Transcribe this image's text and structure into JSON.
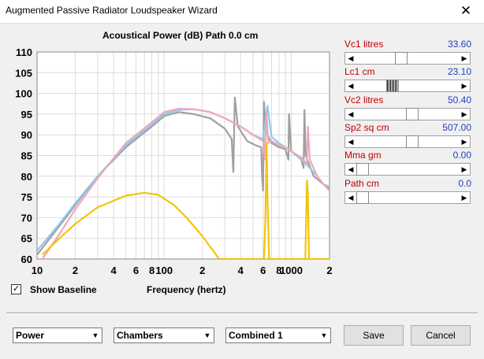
{
  "window": {
    "title": "Augmented Passive Radiator Loudspeaker Wizard",
    "close_glyph": "✕"
  },
  "plot": {
    "title": "Acoustical Power (dB)   Path 0.0 cm"
  },
  "chart_data": {
    "type": "line",
    "title": "Acoustical Power (dB)   Path 0.0 cm",
    "xlabel": "Frequency (hertz)",
    "ylabel": "",
    "xscale": "log",
    "xlim": [
      10,
      2000
    ],
    "ylim": [
      60,
      110
    ],
    "y_ticks": [
      60,
      65,
      70,
      75,
      80,
      85,
      90,
      95,
      100,
      105,
      110
    ],
    "x_tick_labels": [
      {
        "f": 10,
        "label": "10"
      },
      {
        "f": 20,
        "label": "2"
      },
      {
        "f": 40,
        "label": "4"
      },
      {
        "f": 60,
        "label": "6"
      },
      {
        "f": 80,
        "label": "8"
      },
      {
        "f": 100,
        "label": "100"
      },
      {
        "f": 200,
        "label": "2"
      },
      {
        "f": 400,
        "label": "4"
      },
      {
        "f": 600,
        "label": "6"
      },
      {
        "f": 800,
        "label": "8"
      },
      {
        "f": 1000,
        "label": "1000"
      },
      {
        "f": 2000,
        "label": "2"
      }
    ],
    "grid": true,
    "series": [
      {
        "color": "#a0a0a0",
        "points": [
          [
            10,
            61
          ],
          [
            15,
            68
          ],
          [
            20,
            73
          ],
          [
            30,
            80
          ],
          [
            50,
            87
          ],
          [
            80,
            92
          ],
          [
            100,
            94.5
          ],
          [
            130,
            95.5
          ],
          [
            170,
            95
          ],
          [
            230,
            94
          ],
          [
            300,
            91.5
          ],
          [
            340,
            89
          ],
          [
            350,
            81
          ],
          [
            360,
            99
          ],
          [
            380,
            92
          ],
          [
            450,
            88.5
          ],
          [
            520,
            87.5
          ],
          [
            580,
            87
          ],
          [
            590,
            80
          ],
          [
            600,
            76.5
          ],
          [
            610,
            98
          ],
          [
            630,
            91
          ],
          [
            700,
            88
          ],
          [
            800,
            87
          ],
          [
            900,
            86.5
          ],
          [
            950,
            84
          ],
          [
            960,
            95
          ],
          [
            1000,
            86
          ],
          [
            1100,
            85
          ],
          [
            1200,
            84
          ],
          [
            1250,
            82
          ],
          [
            1270,
            96
          ],
          [
            1300,
            85
          ],
          [
            1500,
            80
          ],
          [
            1800,
            78
          ],
          [
            2000,
            77
          ]
        ]
      },
      {
        "color": "#8ec8f0",
        "points": [
          [
            10,
            62
          ],
          [
            15,
            68.5
          ],
          [
            20,
            73.5
          ],
          [
            30,
            80
          ],
          [
            50,
            87.5
          ],
          [
            80,
            92.5
          ],
          [
            100,
            95
          ],
          [
            130,
            96
          ],
          [
            170,
            96.2
          ],
          [
            230,
            95.5
          ],
          [
            300,
            94
          ],
          [
            400,
            92
          ],
          [
            500,
            90
          ],
          [
            600,
            89
          ],
          [
            650,
            97
          ],
          [
            700,
            89.5
          ],
          [
            800,
            88
          ],
          [
            900,
            87
          ],
          [
            1000,
            86
          ],
          [
            1200,
            84
          ],
          [
            1400,
            82
          ],
          [
            1600,
            80
          ],
          [
            1800,
            78
          ],
          [
            2000,
            77.5
          ]
        ]
      },
      {
        "color": "#f0a8b8",
        "points": [
          [
            11,
            60
          ],
          [
            15,
            66
          ],
          [
            20,
            72
          ],
          [
            30,
            79.5
          ],
          [
            50,
            88
          ],
          [
            80,
            93
          ],
          [
            100,
            95.5
          ],
          [
            130,
            96.3
          ],
          [
            170,
            96.2
          ],
          [
            230,
            95.5
          ],
          [
            300,
            94
          ],
          [
            400,
            92
          ],
          [
            500,
            90
          ],
          [
            600,
            88.5
          ],
          [
            620,
            84
          ],
          [
            640,
            95
          ],
          [
            660,
            88
          ],
          [
            700,
            88.5
          ],
          [
            800,
            87.5
          ],
          [
            900,
            87
          ],
          [
            1000,
            86
          ],
          [
            1200,
            84.5
          ],
          [
            1330,
            83
          ],
          [
            1350,
            92
          ],
          [
            1400,
            84
          ],
          [
            1600,
            80
          ],
          [
            1800,
            78
          ],
          [
            2000,
            76.5
          ]
        ]
      },
      {
        "color": "#f2c40a",
        "points": [
          [
            11,
            61
          ],
          [
            15,
            65
          ],
          [
            20,
            68.5
          ],
          [
            30,
            72.5
          ],
          [
            50,
            75.3
          ],
          [
            70,
            76
          ],
          [
            90,
            75.5
          ],
          [
            120,
            73
          ],
          [
            150,
            70
          ],
          [
            200,
            65.5
          ],
          [
            250,
            61.5
          ],
          [
            270,
            60
          ],
          [
            610,
            60
          ],
          [
            625,
            69
          ],
          [
            640,
            88
          ],
          [
            650,
            75
          ],
          [
            670,
            60
          ],
          [
            1290,
            60
          ],
          [
            1330,
            79
          ],
          [
            1350,
            76
          ],
          [
            1380,
            60
          ],
          [
            2000,
            60
          ]
        ]
      }
    ]
  },
  "checkbox": {
    "glyph": "✓",
    "label": "Show Baseline"
  },
  "xaxis_label": "Frequency (hertz)",
  "params": [
    {
      "label": "Vc1  litres",
      "value": "33.60",
      "pos": 0.43,
      "hatched": false
    },
    {
      "label": "Lc1  cm",
      "value": "23.10",
      "pos": 0.33,
      "hatched": true
    },
    {
      "label": "Vc2  litres",
      "value": "50.40",
      "pos": 0.55,
      "hatched": false
    },
    {
      "label": "Sp2  sq cm",
      "value": "507.00",
      "pos": 0.55,
      "hatched": false
    },
    {
      "label": "Mma  gm",
      "value": "0.00",
      "pos": 0.0,
      "hatched": false
    },
    {
      "label": "Path  cm",
      "value": "0.0",
      "pos": 0.0,
      "hatched": false
    }
  ],
  "arrows": {
    "left": "◀",
    "right": "▶",
    "down": "▼"
  },
  "selects": [
    {
      "value": "Power"
    },
    {
      "value": "Chambers"
    },
    {
      "value": "Combined 1"
    }
  ],
  "buttons": {
    "save": "Save",
    "cancel": "Cancel"
  }
}
